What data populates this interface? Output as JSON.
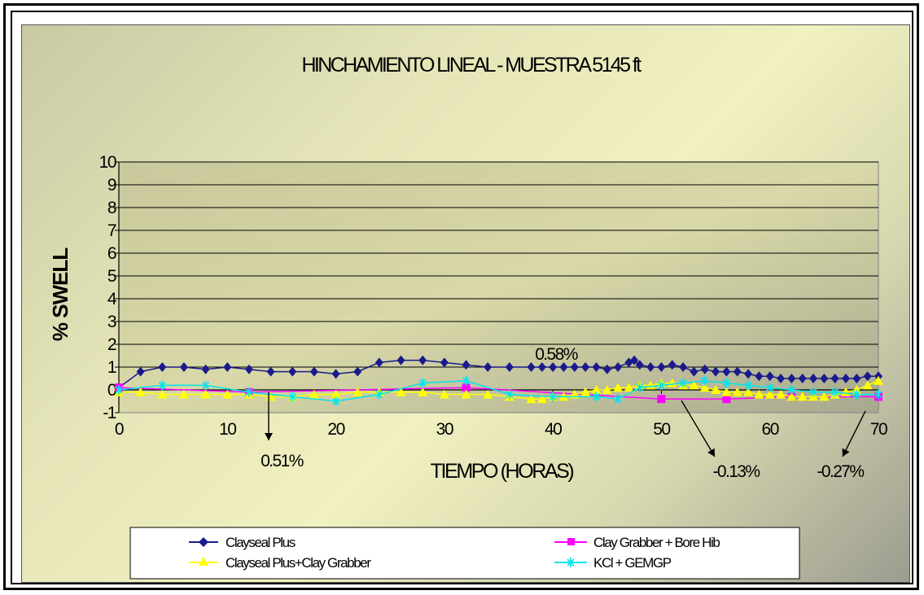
{
  "chart_data": {
    "type": "line",
    "title": "HINCHAMIENTO LINEAL - MUESTRA 5145 ft",
    "xlabel": "TIEMPO (HORAS)",
    "ylabel": "% SWELL",
    "xlim": [
      0,
      70
    ],
    "ylim": [
      -1,
      10
    ],
    "x_ticks": [
      "0",
      "10",
      "20",
      "30",
      "40",
      "50",
      "60",
      "70"
    ],
    "y_ticks": [
      "-1",
      "0",
      "1",
      "2",
      "3",
      "4",
      "5",
      "6",
      "7",
      "8",
      "9",
      "10"
    ],
    "grid": "horizontal",
    "legend_position": "bottom",
    "series": [
      {
        "name": "Clayseal Plus",
        "color": "#1a1a8c",
        "marker": "diamond",
        "points": [
          [
            0,
            0.1
          ],
          [
            2,
            0.8
          ],
          [
            4,
            1.0
          ],
          [
            6,
            1.0
          ],
          [
            8,
            0.9
          ],
          [
            10,
            1.0
          ],
          [
            12,
            0.9
          ],
          [
            14,
            0.8
          ],
          [
            16,
            0.8
          ],
          [
            18,
            0.8
          ],
          [
            20,
            0.7
          ],
          [
            22,
            0.8
          ],
          [
            24,
            1.2
          ],
          [
            26,
            1.3
          ],
          [
            28,
            1.3
          ],
          [
            30,
            1.2
          ],
          [
            32,
            1.1
          ],
          [
            34,
            1.0
          ],
          [
            36,
            1.0
          ],
          [
            38,
            1.0
          ],
          [
            39,
            1.0
          ],
          [
            40,
            1.0
          ],
          [
            41,
            1.0
          ],
          [
            42,
            1.0
          ],
          [
            43,
            1.0
          ],
          [
            44,
            1.0
          ],
          [
            45,
            0.9
          ],
          [
            46,
            1.0
          ],
          [
            47,
            1.2
          ],
          [
            47.5,
            1.3
          ],
          [
            48,
            1.1
          ],
          [
            49,
            1.0
          ],
          [
            50,
            1.0
          ],
          [
            51,
            1.1
          ],
          [
            52,
            1.0
          ],
          [
            53,
            0.8
          ],
          [
            54,
            0.9
          ],
          [
            55,
            0.8
          ],
          [
            56,
            0.8
          ],
          [
            57,
            0.8
          ],
          [
            58,
            0.7
          ],
          [
            59,
            0.6
          ],
          [
            60,
            0.6
          ],
          [
            61,
            0.5
          ],
          [
            62,
            0.5
          ],
          [
            63,
            0.5
          ],
          [
            64,
            0.5
          ],
          [
            65,
            0.5
          ],
          [
            66,
            0.5
          ],
          [
            67,
            0.5
          ],
          [
            68,
            0.5
          ],
          [
            69,
            0.6
          ],
          [
            70,
            0.6
          ]
        ]
      },
      {
        "name": "Clay Grabber + Bore Hib",
        "color": "#ff00ff",
        "marker": "square",
        "points": [
          [
            0,
            0.1
          ],
          [
            12,
            -0.1
          ],
          [
            32,
            0.1
          ],
          [
            50,
            -0.4
          ],
          [
            56,
            -0.4
          ],
          [
            62,
            -0.3
          ],
          [
            70,
            -0.3
          ]
        ]
      },
      {
        "name": "Clayseal Plus+Clay Grabber",
        "color": "#ffff00",
        "marker": "triangle",
        "points": [
          [
            0,
            -0.1
          ],
          [
            2,
            -0.1
          ],
          [
            4,
            -0.2
          ],
          [
            6,
            -0.2
          ],
          [
            8,
            -0.2
          ],
          [
            10,
            -0.2
          ],
          [
            12,
            -0.2
          ],
          [
            14,
            -0.3
          ],
          [
            16,
            -0.3
          ],
          [
            18,
            -0.2
          ],
          [
            20,
            -0.2
          ],
          [
            22,
            -0.1
          ],
          [
            24,
            -0.1
          ],
          [
            26,
            -0.1
          ],
          [
            28,
            -0.1
          ],
          [
            30,
            -0.2
          ],
          [
            32,
            -0.2
          ],
          [
            34,
            -0.2
          ],
          [
            36,
            -0.3
          ],
          [
            38,
            -0.4
          ],
          [
            39,
            -0.4
          ],
          [
            40,
            -0.3
          ],
          [
            41,
            -0.3
          ],
          [
            42,
            -0.2
          ],
          [
            43,
            -0.1
          ],
          [
            44,
            0.0
          ],
          [
            45,
            0.0
          ],
          [
            46,
            0.1
          ],
          [
            47,
            0.1
          ],
          [
            48,
            0.2
          ],
          [
            49,
            0.2
          ],
          [
            50,
            0.3
          ],
          [
            51,
            0.3
          ],
          [
            52,
            0.2
          ],
          [
            53,
            0.2
          ],
          [
            54,
            0.1
          ],
          [
            55,
            0.0
          ],
          [
            56,
            -0.1
          ],
          [
            57,
            -0.1
          ],
          [
            58,
            -0.1
          ],
          [
            59,
            -0.2
          ],
          [
            60,
            -0.2
          ],
          [
            61,
            -0.2
          ],
          [
            62,
            -0.3
          ],
          [
            63,
            -0.3
          ],
          [
            64,
            -0.3
          ],
          [
            65,
            -0.3
          ],
          [
            66,
            -0.2
          ],
          [
            67,
            -0.1
          ],
          [
            68,
            0.0
          ],
          [
            69,
            0.2
          ],
          [
            70,
            0.4
          ]
        ]
      },
      {
        "name": "KCl + GEMGP",
        "color": "#00e5ee",
        "marker": "asterisk",
        "points": [
          [
            0,
            0.0
          ],
          [
            4,
            0.2
          ],
          [
            8,
            0.2
          ],
          [
            12,
            -0.1
          ],
          [
            16,
            -0.3
          ],
          [
            20,
            -0.5
          ],
          [
            24,
            -0.2
          ],
          [
            28,
            0.3
          ],
          [
            32,
            0.4
          ],
          [
            36,
            -0.2
          ],
          [
            40,
            -0.3
          ],
          [
            44,
            -0.3
          ],
          [
            46,
            -0.4
          ],
          [
            48,
            0.1
          ],
          [
            50,
            0.2
          ],
          [
            52,
            0.3
          ],
          [
            54,
            0.4
          ],
          [
            56,
            0.3
          ],
          [
            58,
            0.2
          ],
          [
            60,
            0.1
          ],
          [
            62,
            0.0
          ],
          [
            64,
            -0.1
          ],
          [
            66,
            -0.1
          ],
          [
            68,
            -0.2
          ],
          [
            70,
            -0.2
          ]
        ]
      }
    ],
    "annotations": [
      {
        "text": "0.58%",
        "arrow": false,
        "x": 38,
        "y": 1.0
      },
      {
        "text": "0.51%",
        "arrow": true,
        "x": 14,
        "y": -0.3
      },
      {
        "text": "-0.13%",
        "arrow": true,
        "x": 50,
        "y": 0.1
      },
      {
        "text": "-0.27%",
        "arrow": true,
        "x": 68,
        "y": -0.1
      }
    ]
  }
}
